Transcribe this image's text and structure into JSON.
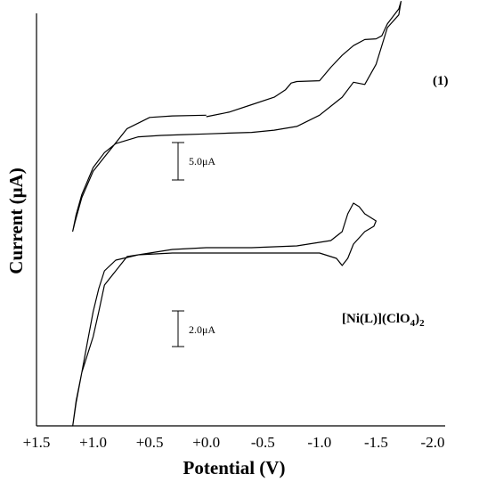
{
  "chart_data": {
    "type": "line",
    "xlabel": "Potential (V)",
    "ylabel": "Current (μA)",
    "xlim": [
      1.5,
      -2.0
    ],
    "x_ticks": [
      {
        "value": 1.5,
        "label": "+1.5"
      },
      {
        "value": 1.0,
        "label": "+1.0"
      },
      {
        "value": 0.5,
        "label": "+0.5"
      },
      {
        "value": 0.0,
        "label": "+0.0"
      },
      {
        "value": -0.5,
        "label": "-0.5"
      },
      {
        "value": -1.0,
        "label": "-1.0"
      },
      {
        "value": -1.5,
        "label": "-1.5"
      },
      {
        "value": -2.0,
        "label": "-2.0"
      }
    ],
    "grid": false,
    "series": [
      {
        "label": "(1)",
        "scale_bar": {
          "text": "5.0μA",
          "current_uA": 5.0
        },
        "x": [
          0.0,
          -0.2,
          -0.4,
          -0.6,
          -0.7,
          -0.75,
          -0.8,
          -1.0,
          -1.1,
          -1.2,
          -1.3,
          -1.4,
          -1.5,
          -1.55,
          -1.6,
          -1.7,
          -1.72,
          -1.7,
          -1.6,
          -1.5,
          -1.4,
          -1.3,
          -1.2,
          -1.0,
          -0.8,
          -0.6,
          -0.4,
          -0.2,
          0.0,
          0.2,
          0.4,
          0.6,
          0.8,
          0.9,
          1.0,
          1.1,
          1.15,
          1.18,
          1.16,
          1.1,
          1.0,
          0.9,
          0.7,
          0.5,
          0.3,
          0.0
        ],
        "y": [
          0.6,
          1.2,
          2.2,
          3.2,
          4.2,
          5.1,
          5.3,
          5.4,
          7.2,
          8.8,
          10.1,
          10.9,
          11.0,
          11.4,
          13.0,
          15.0,
          16.0,
          14.2,
          12.5,
          7.6,
          4.9,
          5.2,
          3.2,
          0.8,
          -0.7,
          -1.2,
          -1.5,
          -1.6,
          -1.7,
          -1.8,
          -1.9,
          -2.1,
          -3.0,
          -4.2,
          -6.2,
          -9.8,
          -12.5,
          -14.7,
          -13.5,
          -10.2,
          -6.7,
          -4.8,
          -1.0,
          0.5,
          0.7,
          0.8
        ]
      },
      {
        "label": "[Ni(L)](ClO4)2",
        "scale_bar": {
          "text": "2.0μA",
          "current_uA": 2.0
        },
        "x": [
          0.0,
          -0.4,
          -0.8,
          -1.1,
          -1.2,
          -1.25,
          -1.3,
          -1.35,
          -1.4,
          -1.5,
          -1.48,
          -1.4,
          -1.3,
          -1.25,
          -1.2,
          -1.15,
          -1.0,
          -0.5,
          0.0,
          0.3,
          0.6,
          0.8,
          0.9,
          0.95,
          1.0,
          1.05,
          1.1,
          1.15,
          1.18,
          1.15,
          1.1,
          1.0,
          0.95,
          0.9,
          0.7,
          0.3,
          0.0
        ],
        "y": [
          0.0,
          0.0,
          0.1,
          0.4,
          0.9,
          1.9,
          2.5,
          2.3,
          1.9,
          1.5,
          1.2,
          0.9,
          0.2,
          -0.6,
          -1.0,
          -0.6,
          -0.3,
          -0.3,
          -0.3,
          -0.3,
          -0.4,
          -0.7,
          -1.3,
          -2.3,
          -3.6,
          -5.3,
          -7.0,
          -8.6,
          -10.0,
          -8.7,
          -7.0,
          -5.0,
          -3.6,
          -2.1,
          -0.5,
          -0.1,
          0.0
        ]
      }
    ],
    "annotations": [
      "(1)",
      "[Ni(L)](ClO4)2",
      "5.0μA",
      "2.0μA"
    ]
  },
  "text": {
    "series1_label": "(1)",
    "series2_label_main": "[Ni(L)](ClO",
    "series2_label_sub": "4",
    "series2_label_tail": ")",
    "series2_label_sub2": "2",
    "scale1": "5.0μA",
    "scale2": "2.0μA",
    "xlabel": "Potential (V)",
    "ylabel": "Current (μA)"
  }
}
